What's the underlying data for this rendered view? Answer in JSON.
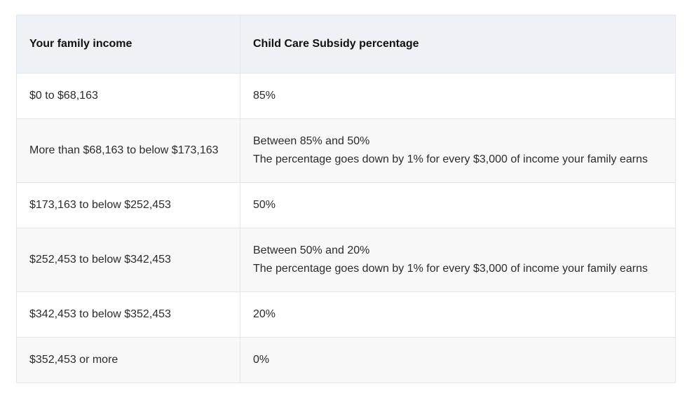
{
  "table": {
    "headers": [
      "Your family income",
      "Child Care Subsidy percentage"
    ],
    "rows": [
      {
        "income": "$0 to $68,163",
        "percentage": "85%",
        "note": ""
      },
      {
        "income": "More than $68,163 to below $173,163",
        "percentage": "Between 85% and 50%",
        "note": "The percentage goes down by 1% for every $3,000 of income your family earns"
      },
      {
        "income": "$173,163 to below $252,453",
        "percentage": "50%",
        "note": ""
      },
      {
        "income": "$252,453 to below $342,453",
        "percentage": "Between 50% and 20%",
        "note": "The percentage goes down by 1% for every $3,000 of income your family earns"
      },
      {
        "income": "$342,453 to below $352,453",
        "percentage": "20%",
        "note": ""
      },
      {
        "income": "$352,453 or more",
        "percentage": "0%",
        "note": ""
      }
    ]
  }
}
